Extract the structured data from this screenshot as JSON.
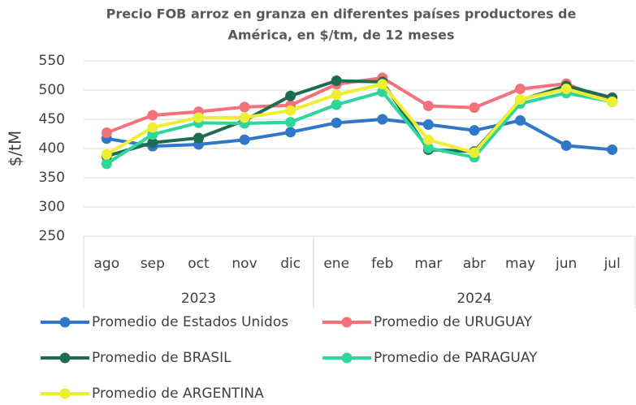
{
  "chart_data": {
    "type": "line",
    "title": "Precio FOB arroz en granza en diferentes países productores de",
    "title_line2": "América, en $/tm, de 12 meses",
    "y_label": "$/tM",
    "groups": [
      {
        "label": "2023",
        "categories": [
          "ago",
          "sep",
          "oct",
          "nov",
          "dic"
        ]
      },
      {
        "label": "2024",
        "categories": [
          "ene",
          "feb",
          "mar",
          "abr",
          "may",
          "jun",
          "jul"
        ]
      }
    ],
    "ylim": [
      250,
      550
    ],
    "yticks": [
      250,
      300,
      350,
      400,
      450,
      500,
      550
    ],
    "grid": true,
    "legend": "bottom",
    "series": [
      {
        "name": "Promedio de Estados Unidos",
        "color": "#2f78c8",
        "values": [
          417,
          404,
          407,
          415,
          428,
          444,
          450,
          441,
          431,
          448,
          405,
          398
        ]
      },
      {
        "name": "Promedio de URUGUAY",
        "color": "#f4727a",
        "values": [
          427,
          457,
          463,
          471,
          474,
          510,
          521,
          473,
          470,
          502,
          511,
          480
        ]
      },
      {
        "name": "Promedio de BRASIL",
        "color": "#1e6b52",
        "values": [
          387,
          410,
          418,
          448,
          490,
          516,
          514,
          398,
          395,
          483,
          507,
          487
        ]
      },
      {
        "name": "Promedio de PARAGUAY",
        "color": "#2fd69a",
        "values": [
          374,
          424,
          444,
          443,
          445,
          475,
          497,
          401,
          385,
          477,
          495,
          480
        ]
      },
      {
        "name": "Promedio de ARGENTINA",
        "color": "#eeee33",
        "values": [
          390,
          436,
          453,
          453,
          465,
          492,
          510,
          415,
          393,
          484,
          502,
          480
        ]
      }
    ]
  }
}
